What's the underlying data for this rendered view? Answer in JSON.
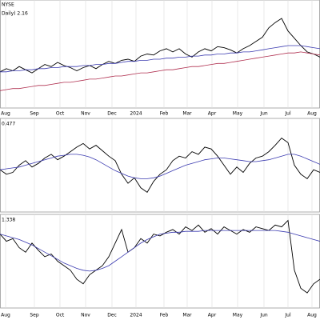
{
  "chart_data": [
    {
      "type": "line",
      "title": "NYSE",
      "subtitle": "Daily) 2.16",
      "x": [
        0,
        8,
        16,
        24,
        32,
        40,
        48,
        56,
        64,
        72,
        80,
        88,
        96,
        104,
        112,
        120,
        128,
        136,
        144,
        152,
        160,
        168,
        176,
        184,
        192,
        200,
        208,
        216,
        224,
        232,
        240,
        248,
        256,
        264,
        272,
        280,
        288,
        296,
        304,
        312,
        320,
        328,
        336,
        344,
        352,
        360,
        368,
        376,
        384,
        392,
        400
      ],
      "xlim": [
        0,
        400
      ],
      "xticks": [
        {
          "value": 7,
          "label": "Aug"
        },
        {
          "value": 43,
          "label": "Sep"
        },
        {
          "value": 75,
          "label": "Oct"
        },
        {
          "value": 107,
          "label": "Nov"
        },
        {
          "value": 140,
          "label": "Dec"
        },
        {
          "value": 170,
          "label": "2024"
        },
        {
          "value": 205,
          "label": "Feb"
        },
        {
          "value": 234,
          "label": "Mar"
        },
        {
          "value": 265,
          "label": "Apr"
        },
        {
          "value": 297,
          "label": "May"
        },
        {
          "value": 330,
          "label": "Jun"
        },
        {
          "value": 360,
          "label": "Jul"
        },
        {
          "value": 390,
          "label": "Aug"
        }
      ],
      "ylim": [
        0,
        100
      ],
      "series": [
        {
          "color": "#000000",
          "values": [
            33,
            36,
            34,
            38,
            35,
            32,
            36,
            40,
            38,
            42,
            39,
            37,
            34,
            37,
            39,
            36,
            40,
            43,
            41,
            44,
            45,
            43,
            48,
            50,
            49,
            53,
            55,
            52,
            55,
            50,
            47,
            52,
            55,
            53,
            57,
            56,
            54,
            51,
            55,
            58,
            62,
            66,
            75,
            80,
            84,
            72,
            65,
            58,
            52,
            50,
            47
          ]
        },
        {
          "color": "#3b3bb0",
          "values": [
            33,
            33,
            34,
            34,
            35,
            35,
            36,
            36,
            37,
            37,
            38,
            38,
            38,
            39,
            39,
            40,
            40,
            41,
            41,
            42,
            43,
            43,
            44,
            44,
            45,
            45,
            46,
            46,
            47,
            47,
            48,
            48,
            49,
            49,
            50,
            50,
            51,
            51,
            52,
            52,
            53,
            54,
            55,
            56,
            57,
            58,
            58,
            58,
            57,
            56,
            55
          ]
        },
        {
          "color": "#b03050",
          "values": [
            15,
            16,
            17,
            17,
            18,
            19,
            20,
            20,
            21,
            22,
            23,
            23,
            24,
            25,
            26,
            26,
            27,
            28,
            29,
            29,
            30,
            31,
            32,
            32,
            33,
            34,
            35,
            35,
            36,
            37,
            38,
            38,
            39,
            40,
            41,
            41,
            42,
            43,
            44,
            45,
            46,
            47,
            48,
            49,
            50,
            51,
            51,
            52,
            51,
            50,
            49
          ]
        }
      ]
    },
    {
      "type": "line",
      "subtitle": "0.477",
      "x": [
        0,
        8,
        16,
        24,
        32,
        40,
        48,
        56,
        64,
        72,
        80,
        88,
        96,
        104,
        112,
        120,
        128,
        136,
        144,
        152,
        160,
        168,
        176,
        184,
        192,
        200,
        208,
        216,
        224,
        232,
        240,
        248,
        256,
        264,
        272,
        280,
        288,
        296,
        304,
        312,
        320,
        328,
        336,
        344,
        352,
        360,
        368,
        376,
        384,
        392,
        400
      ],
      "xlim": [
        0,
        400
      ],
      "ylim": [
        0,
        100
      ],
      "series": [
        {
          "color": "#000000",
          "values": [
            45,
            40,
            42,
            50,
            55,
            48,
            52,
            58,
            62,
            56,
            60,
            65,
            70,
            74,
            68,
            72,
            66,
            60,
            55,
            40,
            30,
            36,
            25,
            20,
            32,
            40,
            45,
            55,
            60,
            58,
            65,
            62,
            70,
            68,
            60,
            50,
            40,
            48,
            42,
            52,
            58,
            60,
            65,
            72,
            80,
            75,
            50,
            40,
            35,
            45,
            42
          ]
        },
        {
          "color": "#3b3bb0",
          "values": [
            45,
            46,
            47,
            48,
            50,
            52,
            54,
            56,
            58,
            60,
            61,
            62,
            62,
            61,
            59,
            56,
            52,
            48,
            44,
            41,
            38,
            36,
            35,
            35,
            36,
            38,
            41,
            44,
            47,
            50,
            52,
            54,
            56,
            57,
            58,
            58,
            57,
            56,
            55,
            54,
            54,
            55,
            56,
            58,
            60,
            62,
            62,
            60,
            57,
            54,
            51
          ]
        }
      ]
    },
    {
      "type": "line",
      "subtitle": "1.338",
      "x": [
        0,
        8,
        16,
        24,
        32,
        40,
        48,
        56,
        64,
        72,
        80,
        88,
        96,
        104,
        112,
        120,
        128,
        136,
        144,
        152,
        160,
        168,
        176,
        184,
        192,
        200,
        208,
        216,
        224,
        232,
        240,
        248,
        256,
        264,
        272,
        280,
        288,
        296,
        304,
        312,
        320,
        328,
        336,
        344,
        352,
        360,
        368,
        376,
        384,
        392,
        400
      ],
      "xlim": [
        0,
        400
      ],
      "xticks": [
        {
          "value": 7,
          "label": "Aug"
        },
        {
          "value": 43,
          "label": "Sep"
        },
        {
          "value": 75,
          "label": "Oct"
        },
        {
          "value": 107,
          "label": "Nov"
        },
        {
          "value": 140,
          "label": "Dec"
        },
        {
          "value": 170,
          "label": "2024"
        },
        {
          "value": 205,
          "label": "Feb"
        },
        {
          "value": 234,
          "label": "Mar"
        },
        {
          "value": 265,
          "label": "Apr"
        },
        {
          "value": 297,
          "label": "May"
        },
        {
          "value": 330,
          "label": "Jun"
        },
        {
          "value": 360,
          "label": "Jul"
        },
        {
          "value": 390,
          "label": "Aug"
        }
      ],
      "ylim": [
        0,
        100
      ],
      "series": [
        {
          "color": "#000000",
          "values": [
            80,
            72,
            75,
            65,
            60,
            70,
            62,
            55,
            58,
            50,
            45,
            40,
            30,
            25,
            35,
            40,
            45,
            55,
            70,
            85,
            60,
            65,
            75,
            70,
            80,
            78,
            82,
            85,
            80,
            88,
            84,
            90,
            82,
            86,
            80,
            88,
            84,
            80,
            85,
            82,
            88,
            86,
            84,
            90,
            88,
            95,
            40,
            20,
            15,
            25,
            30
          ]
        },
        {
          "color": "#3b3bb0",
          "values": [
            80,
            78,
            76,
            74,
            71,
            68,
            64,
            60,
            56,
            52,
            48,
            45,
            42,
            40,
            39,
            40,
            42,
            45,
            50,
            55,
            60,
            65,
            70,
            74,
            77,
            80,
            81,
            82,
            82,
            83,
            83,
            83,
            84,
            84,
            84,
            84,
            84,
            84,
            84,
            84,
            84,
            84,
            84,
            84,
            83,
            82,
            80,
            78,
            76,
            74,
            72
          ]
        }
      ]
    }
  ]
}
